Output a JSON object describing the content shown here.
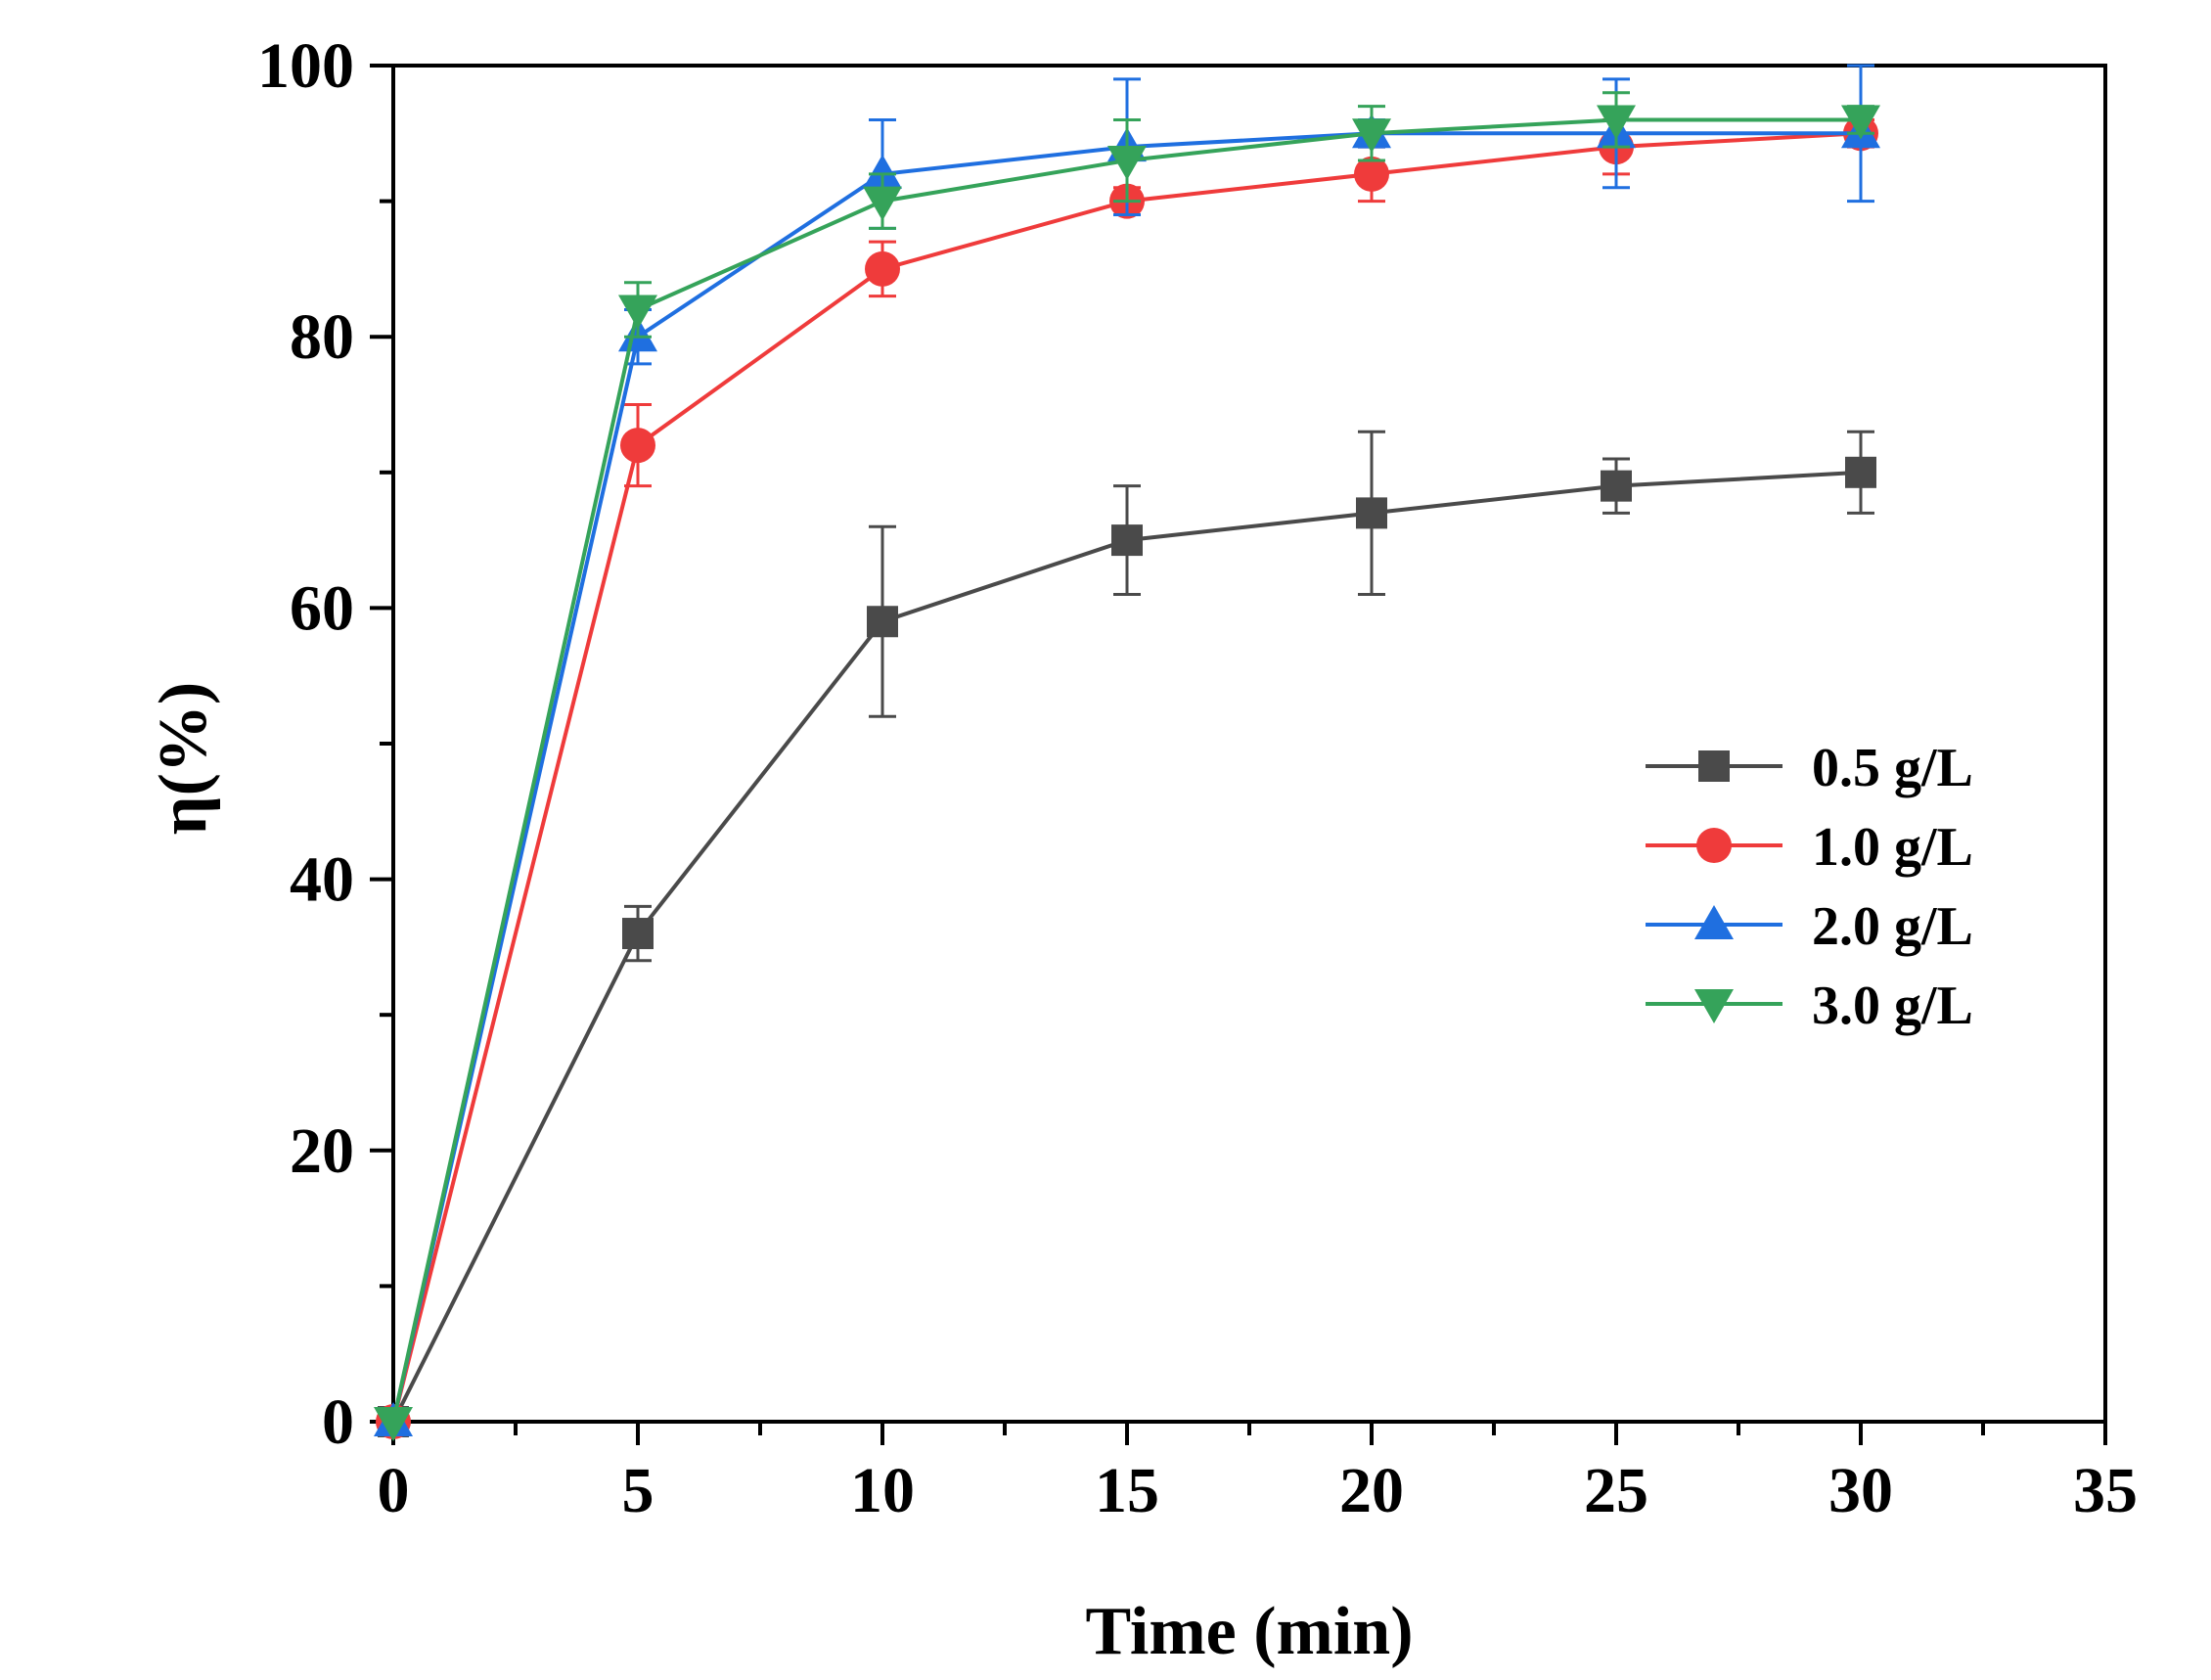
{
  "chart_data": {
    "type": "line",
    "xlabel": "Time (min)",
    "ylabel": "η(%)",
    "xlim": [
      0,
      35
    ],
    "ylim": [
      0,
      100
    ],
    "xticks": [
      "0",
      "5",
      "10",
      "15",
      "20",
      "25",
      "30",
      "35"
    ],
    "yticks": [
      "0",
      "20",
      "40",
      "60",
      "80",
      "100"
    ],
    "x": [
      0,
      5,
      10,
      15,
      20,
      25,
      30
    ],
    "legend_position": "right",
    "series": [
      {
        "name": "0.5 g/L",
        "marker": "square",
        "color": "#4a4a4a",
        "values": [
          0,
          36,
          59,
          65,
          67,
          69,
          70
        ],
        "errors": [
          0,
          2,
          7,
          4,
          6,
          2,
          3
        ]
      },
      {
        "name": "1.0 g/L",
        "marker": "circle",
        "color": "#ef3b3b",
        "values": [
          0,
          72,
          85,
          90,
          92,
          94,
          95
        ],
        "errors": [
          0,
          3,
          2,
          1,
          2,
          2,
          1
        ]
      },
      {
        "name": "2.0 g/L",
        "marker": "triangle-up",
        "color": "#1f6fe0",
        "values": [
          0,
          80,
          92,
          94,
          95,
          95,
          95
        ],
        "errors": [
          0,
          2,
          4,
          5,
          1,
          4,
          5
        ]
      },
      {
        "name": "3.0 g/L",
        "marker": "triangle-down",
        "color": "#35a35a",
        "values": [
          0,
          82,
          90,
          93,
          95,
          96,
          96
        ],
        "errors": [
          0,
          2,
          2,
          3,
          2,
          2,
          1
        ]
      }
    ]
  }
}
